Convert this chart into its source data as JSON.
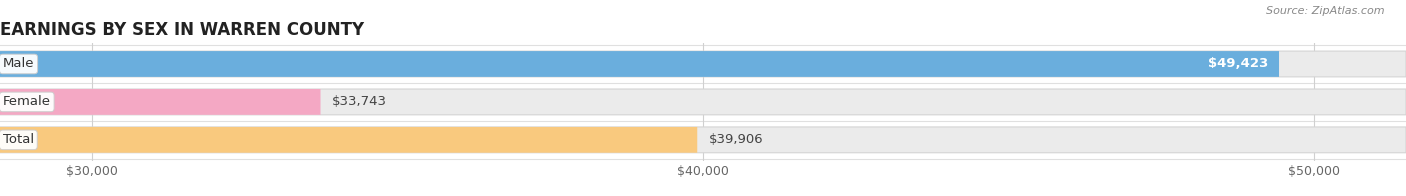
{
  "title": "EARNINGS BY SEX IN WARREN COUNTY",
  "source": "Source: ZipAtlas.com",
  "categories": [
    "Male",
    "Female",
    "Total"
  ],
  "values": [
    49423,
    33743,
    39906
  ],
  "bar_colors": [
    "#6aaedd",
    "#f4a8c4",
    "#f9c97e"
  ],
  "bar_bg_color": "#ebebeb",
  "bar_bg_edge_color": "#d4d4d4",
  "label_colors": [
    "#ffffff",
    "#555555",
    "#555555"
  ],
  "value_labels": [
    "$49,423",
    "$33,743",
    "$39,906"
  ],
  "xmin": 28500,
  "xmax": 51500,
  "xticks": [
    30000,
    40000,
    50000
  ],
  "xtick_labels": [
    "$30,000",
    "$40,000",
    "$50,000"
  ],
  "title_fontsize": 12,
  "tick_fontsize": 9,
  "value_label_fontsize": 9.5,
  "cat_label_fontsize": 9.5,
  "fig_bg_color": "#ffffff",
  "row_sep_color": "#e0e0e0",
  "grid_color": "#d0d0d0"
}
